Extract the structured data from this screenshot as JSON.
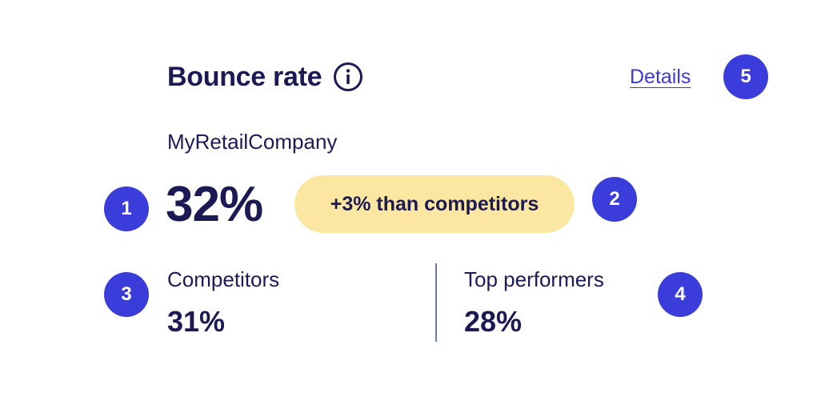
{
  "card": {
    "title": "Bounce rate",
    "info_icon": "info-icon",
    "details_label": "Details",
    "company": "MyRetailCompany",
    "value": "32%",
    "comparison_badge": "+3% than competitors",
    "competitors": {
      "label": "Competitors",
      "value": "31%"
    },
    "top_performers": {
      "label": "Top performers",
      "value": "28%"
    }
  },
  "markers": [
    "1",
    "2",
    "3",
    "4",
    "5"
  ],
  "colors": {
    "text": "#1c1a55",
    "link": "#3d3ad3",
    "badge_bg": "#fbe7a1",
    "marker_bg": "#3b3ddb",
    "divider": "#6e7d96"
  }
}
